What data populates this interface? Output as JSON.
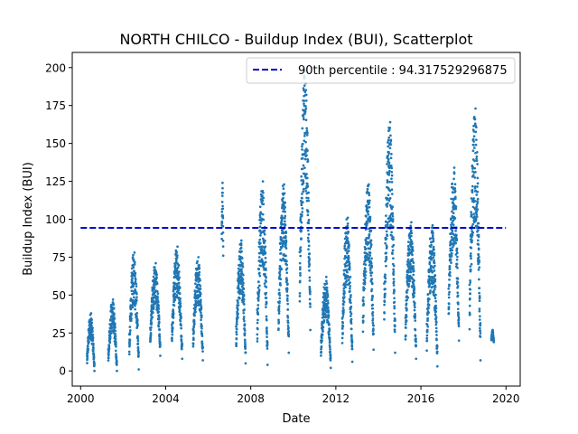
{
  "chart_data": {
    "type": "scatter",
    "title": "NORTH CHILCO - Buildup Index (BUI), Scatterplot",
    "xlabel": "Date",
    "ylabel": "Buildup Index (BUI)",
    "xlim": [
      "1999-08-10",
      "2020-09-01"
    ],
    "ylim": [
      -10,
      210
    ],
    "x_ticks": [
      "2000",
      "2004",
      "2008",
      "2012",
      "2016",
      "2020"
    ],
    "y_ticks": [
      0,
      25,
      50,
      75,
      100,
      125,
      150,
      175,
      200
    ],
    "grid": false,
    "legend_position": "upper right",
    "marker_color": "#1f77b4",
    "reference_line": {
      "label": "90th percentile : 94.317529296875",
      "value": 94.317529296875,
      "x_range": [
        "2000-01-01",
        "2019-12-31"
      ],
      "style": "dashed",
      "color": "#0000cc"
    },
    "seasons": [
      {
        "year": 2000,
        "start": "2000-04-20",
        "end": "2000-08-25",
        "min": 0,
        "max": 38
      },
      {
        "year": 2001,
        "start": "2001-04-20",
        "end": "2001-09-15",
        "min": 0,
        "max": 47
      },
      {
        "year": 2002,
        "start": "2002-04-15",
        "end": "2002-09-25",
        "min": 1,
        "max": 78
      },
      {
        "year": 2003,
        "start": "2003-04-10",
        "end": "2003-09-30",
        "min": 10,
        "max": 71
      },
      {
        "year": 2004,
        "start": "2004-04-15",
        "end": "2004-10-10",
        "min": 8,
        "max": 82
      },
      {
        "year": 2005,
        "start": "2005-04-15",
        "end": "2005-09-30",
        "min": 7,
        "max": 75
      },
      {
        "year": 2006,
        "start": "2006-08-20",
        "end": "2006-09-15",
        "min": 76,
        "max": 124
      },
      {
        "year": 2007,
        "start": "2007-04-25",
        "end": "2007-10-05",
        "min": 5,
        "max": 86
      },
      {
        "year": 2008,
        "start": "2008-04-20",
        "end": "2008-10-15",
        "min": 4,
        "max": 125
      },
      {
        "year": 2009,
        "start": "2009-04-20",
        "end": "2009-10-15",
        "min": 12,
        "max": 123
      },
      {
        "year": 2010,
        "start": "2010-04-20",
        "end": "2010-10-20",
        "min": 27,
        "max": 198
      },
      {
        "year": 2011,
        "start": "2011-04-20",
        "end": "2011-10-05",
        "min": 2,
        "max": 62
      },
      {
        "year": 2012,
        "start": "2012-04-20",
        "end": "2012-10-10",
        "min": 6,
        "max": 101
      },
      {
        "year": 2013,
        "start": "2013-04-10",
        "end": "2013-10-10",
        "min": 14,
        "max": 123
      },
      {
        "year": 2014,
        "start": "2014-04-10",
        "end": "2014-10-15",
        "min": 12,
        "max": 164
      },
      {
        "year": 2015,
        "start": "2015-04-10",
        "end": "2015-10-10",
        "min": 8,
        "max": 98
      },
      {
        "year": 2016,
        "start": "2016-04-10",
        "end": "2016-10-10",
        "min": 3,
        "max": 96
      },
      {
        "year": 2017,
        "start": "2017-04-20",
        "end": "2017-10-15",
        "min": 20,
        "max": 134
      },
      {
        "year": 2018,
        "start": "2018-04-15",
        "end": "2018-10-20",
        "min": 7,
        "max": 173
      },
      {
        "year": 2019,
        "start": "2019-04-25",
        "end": "2019-06-05",
        "min": 19,
        "max": 27
      }
    ]
  }
}
